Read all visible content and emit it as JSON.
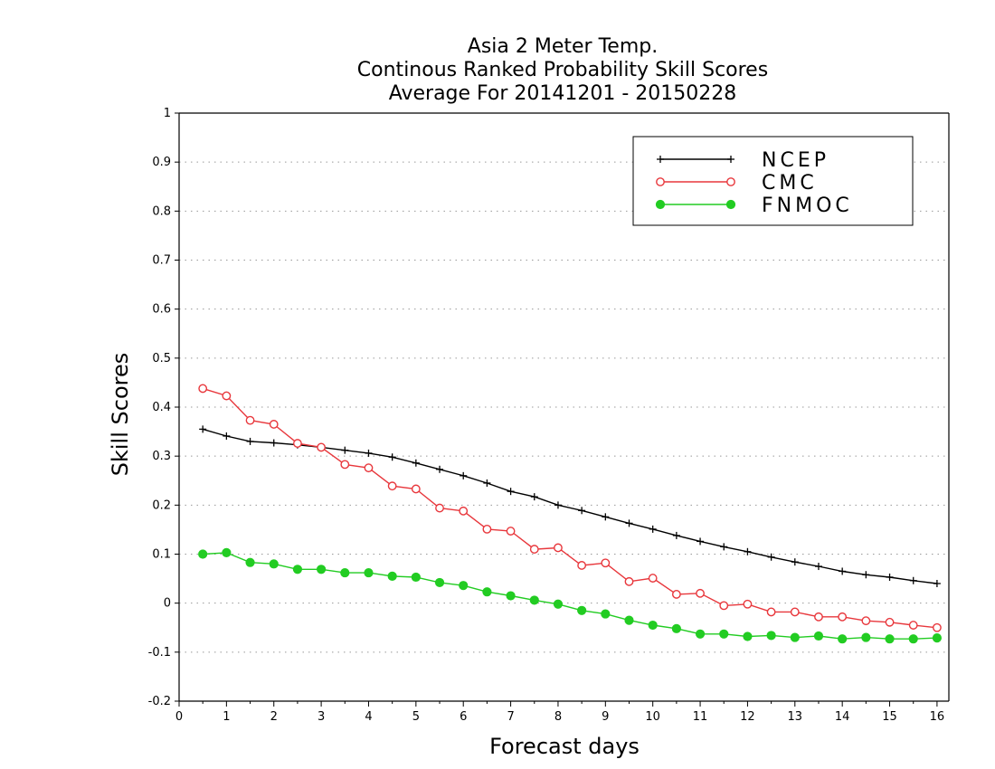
{
  "chart_data": {
    "type": "line",
    "title": [
      "Asia 2 Meter Temp.",
      "Continous Ranked Probability Skill Scores",
      "Average For 20141201 - 20150228"
    ],
    "xlabel": "Forecast days",
    "ylabel": "Skill Scores",
    "xlim": [
      0,
      16.25
    ],
    "ylim": [
      -0.2,
      1
    ],
    "xticks": [
      0,
      1,
      2,
      3,
      4,
      5,
      6,
      7,
      8,
      9,
      10,
      11,
      12,
      13,
      14,
      15,
      16
    ],
    "yticks": [
      -0.2,
      -0.1,
      0,
      0.1,
      0.2,
      0.3,
      0.4,
      0.5,
      0.6,
      0.7,
      0.8,
      0.9,
      1
    ],
    "ytick_labels": [
      "-0.2",
      "-0.1",
      "0",
      "0.1",
      "0.2",
      "0.3",
      "0.4",
      "0.5",
      "0.6",
      "0.7",
      "0.8",
      "0.9",
      "1"
    ],
    "grid": "horizontal-dotted",
    "legend_position": "top-right",
    "x": [
      0.5,
      1,
      1.5,
      2,
      2.5,
      3,
      3.5,
      4,
      4.5,
      5,
      5.5,
      6,
      6.5,
      7,
      7.5,
      8,
      8.5,
      9,
      9.5,
      10,
      10.5,
      11,
      11.5,
      12,
      12.5,
      13,
      13.5,
      14,
      14.5,
      15,
      15.5,
      16
    ],
    "series": [
      {
        "name": "NCEP",
        "color": "#000000",
        "marker": "plus",
        "values": [
          0.355,
          0.341,
          0.33,
          0.327,
          0.323,
          0.318,
          0.312,
          0.306,
          0.298,
          0.286,
          0.273,
          0.26,
          0.245,
          0.228,
          0.217,
          0.2,
          0.189,
          0.176,
          0.163,
          0.151,
          0.138,
          0.126,
          0.115,
          0.105,
          0.094,
          0.084,
          0.075,
          0.065,
          0.058,
          0.053,
          0.046,
          0.04
        ]
      },
      {
        "name": "CMC",
        "color": "#e8373c",
        "marker": "open-circle",
        "values": [
          0.438,
          0.423,
          0.373,
          0.365,
          0.326,
          0.318,
          0.283,
          0.276,
          0.239,
          0.233,
          0.194,
          0.188,
          0.151,
          0.147,
          0.11,
          0.113,
          0.077,
          0.082,
          0.044,
          0.051,
          0.018,
          0.02,
          -0.005,
          -0.002,
          -0.018,
          -0.018,
          -0.028,
          -0.028,
          -0.036,
          -0.039,
          -0.045,
          -0.05
        ]
      },
      {
        "name": "FNMOC",
        "color": "#22cc22",
        "marker": "filled-circle",
        "values": [
          0.1,
          0.103,
          0.083,
          0.08,
          0.069,
          0.069,
          0.062,
          0.062,
          0.055,
          0.053,
          0.042,
          0.036,
          0.023,
          0.015,
          0.006,
          -0.002,
          -0.015,
          -0.022,
          -0.035,
          -0.045,
          -0.052,
          -0.063,
          -0.063,
          -0.068,
          -0.066,
          -0.07,
          -0.067,
          -0.073,
          -0.07,
          -0.073,
          -0.073,
          -0.071
        ]
      }
    ]
  }
}
